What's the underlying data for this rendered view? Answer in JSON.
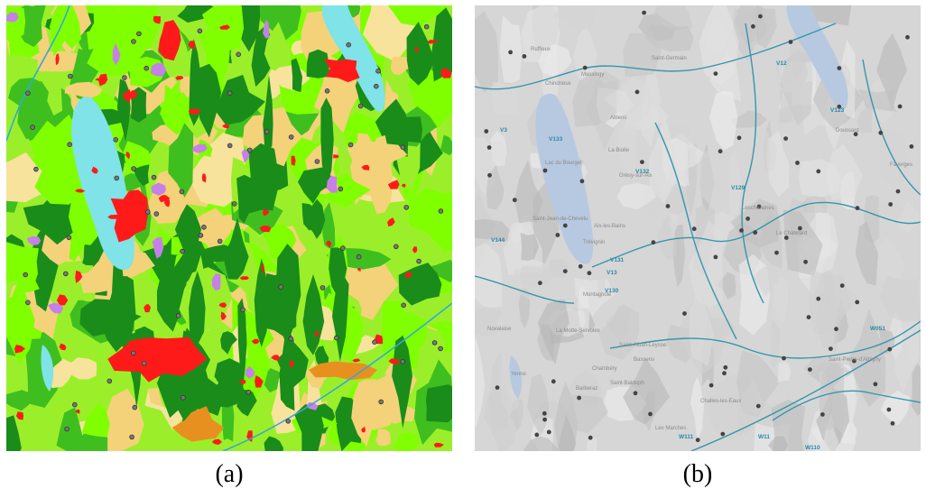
{
  "figure": {
    "panels": [
      {
        "id": "a",
        "caption": "(a)",
        "map_style": "land-cover",
        "colors": {
          "water": "#7fe3e8",
          "urban": "#ff1a1a",
          "forest_dark": "#1a8c1a",
          "forest": "#3fbf1f",
          "grassland": "#9bef2a",
          "bright": "#7fff00",
          "agriculture": "#f4d27a",
          "sand": "#f7e39c",
          "orange": "#e8901f",
          "purple": "#c680e8",
          "lavender": "#b8b8f0"
        }
      },
      {
        "id": "b",
        "caption": "(b)",
        "map_style": "relief-with-roads",
        "colors": {
          "relief": "#d6d6d6",
          "water": "#b7c9e0",
          "road": "#3596ad",
          "station": "#444444"
        },
        "place_labels": [
          "Ruffieux",
          "Chindrieux",
          "Massingy",
          "Saint-Germain",
          "Albens",
          "La Biolle",
          "Grésy-sur-Aix",
          "Aix-les-Bains",
          "Lac du Bourget",
          "Trévignin",
          "Le Châtelard",
          "Montagnole",
          "Chambéry",
          "La Motte-Servolex",
          "Saint-Alban-Leysse",
          "Bassens",
          "Saint-Baldoph",
          "Barberaz",
          "Les Marches",
          "Challes-les-Eaux",
          "Saint-Pierre-d'Albigny",
          "Doussard",
          "Faverges",
          "Novalaise",
          "Saint-Jean-de-Chevelu",
          "Yenne",
          "Lescheraines"
        ],
        "road_labels": [
          "V3",
          "V133",
          "V132",
          "V131",
          "V13",
          "V130",
          "V144",
          "V12",
          "V123",
          "V129",
          "W051",
          "W111",
          "W11",
          "W110"
        ]
      }
    ]
  }
}
